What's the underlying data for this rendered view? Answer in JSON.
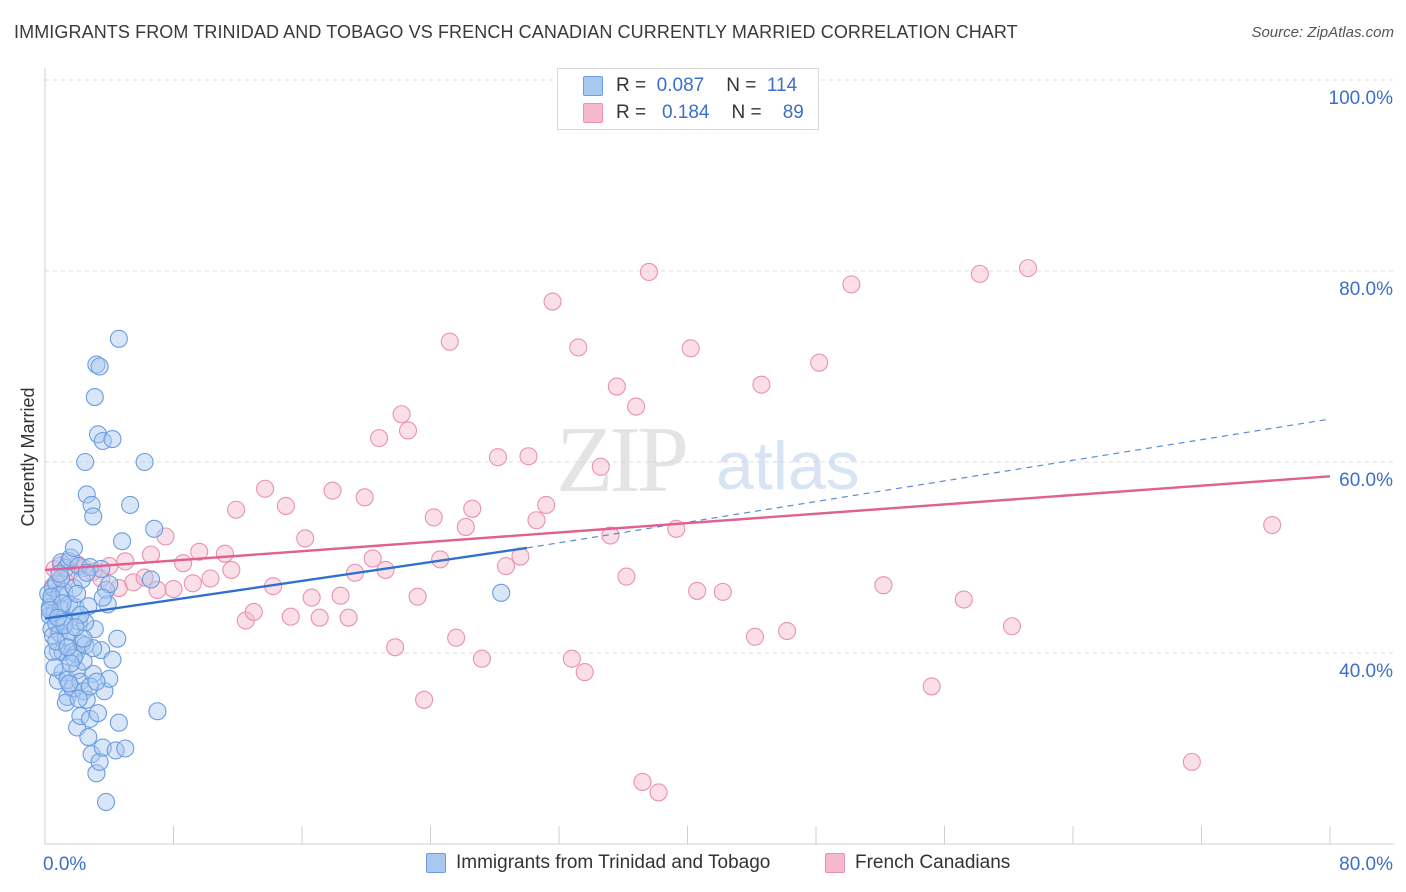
{
  "title": "IMMIGRANTS FROM TRINIDAD AND TOBAGO VS FRENCH CANADIAN CURRENTLY MARRIED CORRELATION CHART",
  "source": "Source: ZipAtlas.com",
  "watermark": {
    "zip": "ZIP",
    "atlas": "atlas"
  },
  "colors": {
    "blue_fill": "#a9c8f0",
    "blue_stroke": "#6a9de0",
    "blue_line": "#2f6fd0",
    "pink_fill": "#f5b8cc",
    "pink_stroke": "#e892b0",
    "pink_line": "#e0608f",
    "tick_label": "#3b6fc9",
    "grid": "#dedede"
  },
  "stats": [
    {
      "r_label": "R =",
      "r_value": "0.087",
      "n_label": "N =",
      "n_value": "114"
    },
    {
      "r_label": "R =",
      "r_value": "0.184",
      "n_label": "N =",
      "n_value": "89"
    }
  ],
  "chart_data": {
    "type": "scatter",
    "ylabel": "Currently Married",
    "xlim": [
      0,
      80
    ],
    "ylim": [
      20,
      100
    ],
    "x_tick_labels": [
      {
        "value": 0,
        "label": "0.0%"
      },
      {
        "value": 80,
        "label": "80.0%"
      }
    ],
    "y_tick_labels": [
      {
        "value": 40,
        "label": "40.0%"
      },
      {
        "value": 60,
        "label": "60.0%"
      },
      {
        "value": 80,
        "label": "80.0%"
      },
      {
        "value": 100,
        "label": "100.0%"
      }
    ],
    "y_gridlines": [
      40,
      60,
      80,
      100
    ],
    "legend_position": "bottom",
    "series": [
      {
        "name": "Immigrants from Trinidad and Tobago",
        "color": "blue",
        "trend": {
          "x0": 0,
          "y0": 43.6,
          "x1": 30,
          "y1": 51.0,
          "dashed_to_x": 80,
          "dashed_to_y": 64.5
        },
        "points": [
          [
            0.2,
            46.2
          ],
          [
            0.3,
            44.8
          ],
          [
            0.3,
            43.9
          ],
          [
            0.4,
            45.5
          ],
          [
            0.4,
            42.5
          ],
          [
            0.5,
            46.8
          ],
          [
            0.5,
            41.8
          ],
          [
            0.6,
            44.2
          ],
          [
            0.7,
            47.3
          ],
          [
            0.7,
            43.1
          ],
          [
            0.8,
            40.2
          ],
          [
            0.8,
            37.1
          ],
          [
            0.9,
            46.1
          ],
          [
            0.9,
            42.1
          ],
          [
            1.0,
            49.5
          ],
          [
            1.0,
            44.6
          ],
          [
            1.1,
            40.1
          ],
          [
            1.1,
            38.0
          ],
          [
            1.2,
            46.4
          ],
          [
            1.2,
            43.3
          ],
          [
            1.3,
            48.9
          ],
          [
            1.3,
            41.7
          ],
          [
            1.4,
            37.2
          ],
          [
            1.4,
            35.4
          ],
          [
            1.5,
            49.6
          ],
          [
            1.5,
            45.1
          ],
          [
            1.6,
            50.0
          ],
          [
            1.6,
            42.2
          ],
          [
            1.7,
            40.1
          ],
          [
            1.7,
            36.3
          ],
          [
            1.8,
            51.0
          ],
          [
            1.8,
            46.8
          ],
          [
            1.9,
            44.8
          ],
          [
            1.9,
            39.9
          ],
          [
            2.0,
            38.2
          ],
          [
            2.0,
            32.2
          ],
          [
            2.1,
            49.1
          ],
          [
            2.1,
            43.3
          ],
          [
            2.2,
            37.0
          ],
          [
            2.2,
            33.4
          ],
          [
            2.3,
            47.7
          ],
          [
            2.3,
            41.0
          ],
          [
            2.4,
            36.0
          ],
          [
            2.4,
            39.1
          ],
          [
            2.5,
            60.0
          ],
          [
            2.5,
            40.8
          ],
          [
            2.6,
            56.6
          ],
          [
            2.6,
            35.1
          ],
          [
            2.7,
            44.9
          ],
          [
            2.7,
            31.2
          ],
          [
            2.8,
            49.0
          ],
          [
            2.8,
            33.1
          ],
          [
            2.9,
            55.5
          ],
          [
            2.9,
            29.4
          ],
          [
            3.0,
            54.3
          ],
          [
            3.0,
            37.8
          ],
          [
            3.1,
            66.8
          ],
          [
            3.1,
            42.5
          ],
          [
            3.2,
            70.2
          ],
          [
            3.2,
            27.4
          ],
          [
            3.3,
            62.9
          ],
          [
            3.3,
            33.7
          ],
          [
            3.4,
            70.0
          ],
          [
            3.4,
            28.6
          ],
          [
            3.5,
            48.8
          ],
          [
            3.5,
            40.3
          ],
          [
            3.6,
            62.2
          ],
          [
            3.6,
            30.1
          ],
          [
            3.7,
            36.0
          ],
          [
            3.8,
            46.6
          ],
          [
            3.8,
            24.4
          ],
          [
            3.9,
            45.1
          ],
          [
            4.0,
            47.2
          ],
          [
            4.0,
            37.3
          ],
          [
            4.2,
            62.4
          ],
          [
            4.2,
            39.3
          ],
          [
            4.4,
            29.8
          ],
          [
            4.5,
            41.5
          ],
          [
            4.6,
            72.9
          ],
          [
            4.6,
            32.7
          ],
          [
            4.8,
            51.7
          ],
          [
            5.0,
            30.0
          ],
          [
            5.3,
            55.5
          ],
          [
            6.2,
            60.0
          ],
          [
            6.6,
            47.7
          ],
          [
            6.8,
            53.0
          ],
          [
            7.0,
            33.9
          ],
          [
            28.4,
            46.3
          ],
          [
            0.5,
            40.1
          ],
          [
            0.6,
            38.5
          ],
          [
            1.0,
            47.8
          ],
          [
            1.5,
            36.8
          ],
          [
            2.0,
            46.2
          ],
          [
            2.5,
            43.2
          ],
          [
            3.0,
            40.5
          ],
          [
            1.2,
            42.9
          ],
          [
            0.9,
            48.3
          ],
          [
            1.8,
            39.5
          ],
          [
            2.2,
            44.0
          ],
          [
            0.4,
            45.9
          ],
          [
            0.7,
            41.2
          ],
          [
            1.6,
            38.9
          ],
          [
            2.8,
            36.5
          ],
          [
            3.6,
            45.8
          ],
          [
            1.3,
            34.8
          ],
          [
            2.4,
            41.5
          ],
          [
            1.1,
            45.2
          ],
          [
            0.3,
            44.5
          ],
          [
            1.9,
            42.7
          ],
          [
            2.6,
            48.4
          ],
          [
            0.8,
            43.7
          ],
          [
            1.4,
            40.6
          ],
          [
            3.2,
            37.0
          ],
          [
            2.1,
            35.2
          ]
        ]
      },
      {
        "name": "French Canadians",
        "color": "pink",
        "trend": {
          "x0": 0,
          "y0": 48.7,
          "x1": 80,
          "y1": 58.5
        },
        "points": [
          [
            0.5,
            47.0
          ],
          [
            0.6,
            48.8
          ],
          [
            1.0,
            49.2
          ],
          [
            1.2,
            47.6
          ],
          [
            1.6,
            48.6
          ],
          [
            2.0,
            49.3
          ],
          [
            2.4,
            48.9
          ],
          [
            3.0,
            48.5
          ],
          [
            3.5,
            47.8
          ],
          [
            4.0,
            49.1
          ],
          [
            4.6,
            46.8
          ],
          [
            5.0,
            49.6
          ],
          [
            5.5,
            47.4
          ],
          [
            6.2,
            47.9
          ],
          [
            6.6,
            50.3
          ],
          [
            7.0,
            46.6
          ],
          [
            7.5,
            52.2
          ],
          [
            8.0,
            46.7
          ],
          [
            8.6,
            49.4
          ],
          [
            9.2,
            47.3
          ],
          [
            9.6,
            50.6
          ],
          [
            10.3,
            47.8
          ],
          [
            11.2,
            50.4
          ],
          [
            11.6,
            48.7
          ],
          [
            11.9,
            55.0
          ],
          [
            12.5,
            43.4
          ],
          [
            13.0,
            44.3
          ],
          [
            13.7,
            57.2
          ],
          [
            14.2,
            47.0
          ],
          [
            15.0,
            55.4
          ],
          [
            15.3,
            43.8
          ],
          [
            16.2,
            52.0
          ],
          [
            16.6,
            45.8
          ],
          [
            17.1,
            43.7
          ],
          [
            17.9,
            57.0
          ],
          [
            18.4,
            46.0
          ],
          [
            18.9,
            43.7
          ],
          [
            19.3,
            48.4
          ],
          [
            19.9,
            56.3
          ],
          [
            20.4,
            49.9
          ],
          [
            20.8,
            62.5
          ],
          [
            21.2,
            48.7
          ],
          [
            21.8,
            40.6
          ],
          [
            22.2,
            65.0
          ],
          [
            22.6,
            63.3
          ],
          [
            23.2,
            45.9
          ],
          [
            23.6,
            35.1
          ],
          [
            24.2,
            54.2
          ],
          [
            24.6,
            49.8
          ],
          [
            25.2,
            72.6
          ],
          [
            25.6,
            41.6
          ],
          [
            26.2,
            53.2
          ],
          [
            26.6,
            55.1
          ],
          [
            27.2,
            39.4
          ],
          [
            28.2,
            60.5
          ],
          [
            28.7,
            49.1
          ],
          [
            29.6,
            50.1
          ],
          [
            30.1,
            60.6
          ],
          [
            30.6,
            53.9
          ],
          [
            31.2,
            55.5
          ],
          [
            31.6,
            76.8
          ],
          [
            32.8,
            39.4
          ],
          [
            33.2,
            72.0
          ],
          [
            33.6,
            38.0
          ],
          [
            34.6,
            59.5
          ],
          [
            35.2,
            52.3
          ],
          [
            35.6,
            67.9
          ],
          [
            36.2,
            48.0
          ],
          [
            36.8,
            65.8
          ],
          [
            37.2,
            26.5
          ],
          [
            37.6,
            79.9
          ],
          [
            38.2,
            25.4
          ],
          [
            39.3,
            53.0
          ],
          [
            40.2,
            71.9
          ],
          [
            40.6,
            46.5
          ],
          [
            42.2,
            46.4
          ],
          [
            44.2,
            41.7
          ],
          [
            44.6,
            68.1
          ],
          [
            46.2,
            42.3
          ],
          [
            48.2,
            70.4
          ],
          [
            50.2,
            78.6
          ],
          [
            52.2,
            47.1
          ],
          [
            55.2,
            36.5
          ],
          [
            57.2,
            45.6
          ],
          [
            58.2,
            79.7
          ],
          [
            60.2,
            42.8
          ],
          [
            61.2,
            80.3
          ],
          [
            71.4,
            28.6
          ],
          [
            76.4,
            53.4
          ]
        ]
      }
    ]
  }
}
